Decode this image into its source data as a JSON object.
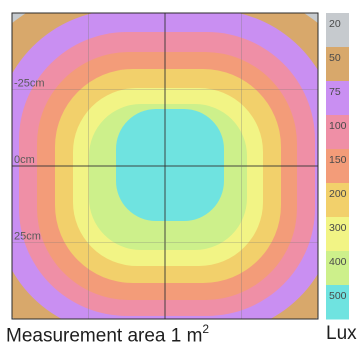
{
  "caption": {
    "area_text": "Measurement area 1 m",
    "area_sup": "2",
    "unit": "Lux"
  },
  "chart_data": {
    "type": "heatmap",
    "title": "",
    "xlabel": "",
    "ylabel": "",
    "y_tick_labels": [
      "-25cm",
      "0cm",
      "25cm"
    ],
    "legend": {
      "placement": "right",
      "unit": "Lux",
      "levels": [
        {
          "label": "20",
          "color": "#c6cace"
        },
        {
          "label": "50",
          "color": "#d8a86b"
        },
        {
          "label": "75",
          "color": "#c98ff2"
        },
        {
          "label": "100",
          "color": "#ef8fa6"
        },
        {
          "label": "150",
          "color": "#f39c79"
        },
        {
          "label": "200",
          "color": "#f2d06b"
        },
        {
          "label": "300",
          "color": "#f2f485"
        },
        {
          "label": "400",
          "color": "#cdf08b"
        },
        {
          "label": "500",
          "color": "#6fe3e0"
        }
      ]
    },
    "grid": true,
    "grid_divisions": 4
  }
}
